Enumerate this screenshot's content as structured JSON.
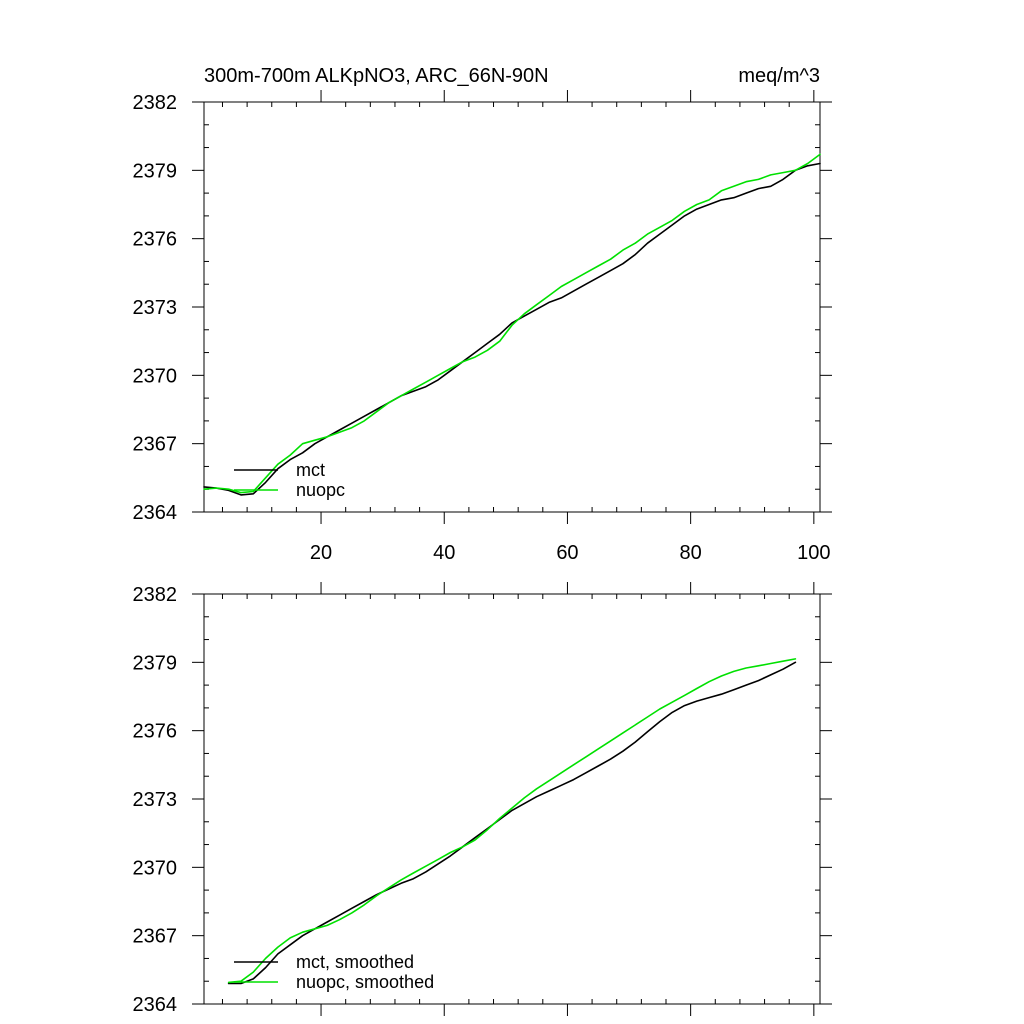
{
  "chart_data": [
    {
      "type": "line",
      "title_left": "300m-700m ALKpNO3, ARC_66N-90N",
      "title_right": "meq/m^3",
      "xlabel": "",
      "ylabel": "",
      "xlim": [
        1,
        101
      ],
      "ylim": [
        2364,
        2382
      ],
      "xticks": [
        20,
        40,
        60,
        80,
        100
      ],
      "xtick_labels": [
        "20",
        "40",
        "60",
        "80",
        "100"
      ],
      "yticks": [
        2364,
        2367,
        2370,
        2373,
        2376,
        2379,
        2382
      ],
      "ytick_labels": [
        "2364",
        "2367",
        "2370",
        "2373",
        "2376",
        "2379",
        "2382"
      ],
      "legend": {
        "position": "bottom-left",
        "entries": [
          "mct",
          "nuopc"
        ]
      },
      "series": [
        {
          "name": "mct",
          "color": "#000000",
          "points": [
            [
              1,
              2365.1
            ],
            [
              3,
              2365.05
            ],
            [
              5,
              2364.95
            ],
            [
              7,
              2364.75
            ],
            [
              9,
              2364.8
            ],
            [
              11,
              2365.3
            ],
            [
              13,
              2365.9
            ],
            [
              15,
              2366.3
            ],
            [
              17,
              2366.6
            ],
            [
              19,
              2367.0
            ],
            [
              21,
              2367.3
            ],
            [
              23,
              2367.6
            ],
            [
              25,
              2367.9
            ],
            [
              27,
              2368.2
            ],
            [
              29,
              2368.5
            ],
            [
              31,
              2368.8
            ],
            [
              33,
              2369.1
            ],
            [
              35,
              2369.3
            ],
            [
              37,
              2369.5
            ],
            [
              39,
              2369.8
            ],
            [
              41,
              2370.2
            ],
            [
              43,
              2370.6
            ],
            [
              45,
              2371.0
            ],
            [
              47,
              2371.4
            ],
            [
              49,
              2371.8
            ],
            [
              51,
              2372.3
            ],
            [
              53,
              2372.6
            ],
            [
              55,
              2372.9
            ],
            [
              57,
              2373.2
            ],
            [
              59,
              2373.4
            ],
            [
              61,
              2373.7
            ],
            [
              63,
              2374.0
            ],
            [
              65,
              2374.3
            ],
            [
              67,
              2374.6
            ],
            [
              69,
              2374.9
            ],
            [
              71,
              2375.3
            ],
            [
              73,
              2375.8
            ],
            [
              75,
              2376.2
            ],
            [
              77,
              2376.6
            ],
            [
              79,
              2377.0
            ],
            [
              81,
              2377.3
            ],
            [
              83,
              2377.5
            ],
            [
              85,
              2377.7
            ],
            [
              87,
              2377.8
            ],
            [
              89,
              2378.0
            ],
            [
              91,
              2378.2
            ],
            [
              93,
              2378.3
            ],
            [
              95,
              2378.6
            ],
            [
              97,
              2379.0
            ],
            [
              99,
              2379.2
            ],
            [
              101,
              2379.3
            ]
          ]
        },
        {
          "name": "nuopc",
          "color": "#00e000",
          "points": [
            [
              1,
              2365.0
            ],
            [
              3,
              2365.05
            ],
            [
              5,
              2365.0
            ],
            [
              7,
              2364.85
            ],
            [
              9,
              2364.9
            ],
            [
              11,
              2365.5
            ],
            [
              13,
              2366.1
            ],
            [
              15,
              2366.5
            ],
            [
              17,
              2367.0
            ],
            [
              19,
              2367.15
            ],
            [
              21,
              2367.3
            ],
            [
              23,
              2367.5
            ],
            [
              25,
              2367.7
            ],
            [
              27,
              2368.0
            ],
            [
              29,
              2368.4
            ],
            [
              31,
              2368.8
            ],
            [
              33,
              2369.1
            ],
            [
              35,
              2369.4
            ],
            [
              37,
              2369.7
            ],
            [
              39,
              2370.0
            ],
            [
              41,
              2370.3
            ],
            [
              43,
              2370.6
            ],
            [
              45,
              2370.8
            ],
            [
              47,
              2371.1
            ],
            [
              49,
              2371.5
            ],
            [
              51,
              2372.2
            ],
            [
              53,
              2372.7
            ],
            [
              55,
              2373.1
            ],
            [
              57,
              2373.5
            ],
            [
              59,
              2373.9
            ],
            [
              61,
              2374.2
            ],
            [
              63,
              2374.5
            ],
            [
              65,
              2374.8
            ],
            [
              67,
              2375.1
            ],
            [
              69,
              2375.5
            ],
            [
              71,
              2375.8
            ],
            [
              73,
              2376.2
            ],
            [
              75,
              2376.5
            ],
            [
              77,
              2376.8
            ],
            [
              79,
              2377.2
            ],
            [
              81,
              2377.5
            ],
            [
              83,
              2377.7
            ],
            [
              85,
              2378.1
            ],
            [
              87,
              2378.3
            ],
            [
              89,
              2378.5
            ],
            [
              91,
              2378.6
            ],
            [
              93,
              2378.8
            ],
            [
              95,
              2378.9
            ],
            [
              97,
              2379.0
            ],
            [
              99,
              2379.3
            ],
            [
              101,
              2379.7
            ]
          ]
        }
      ]
    },
    {
      "type": "line",
      "xlim": [
        1,
        101
      ],
      "ylim": [
        2364,
        2382
      ],
      "xticks": [
        20,
        40,
        60,
        80,
        100
      ],
      "yticks": [
        2364,
        2367,
        2370,
        2373,
        2376,
        2379,
        2382
      ],
      "ytick_labels": [
        "2364",
        "2367",
        "2370",
        "2373",
        "2376",
        "2379",
        "2382"
      ],
      "legend": {
        "position": "bottom-left",
        "entries": [
          "mct, smoothed",
          "nuopc, smoothed"
        ]
      },
      "series": [
        {
          "name": "mct, smoothed",
          "color": "#000000",
          "points": [
            [
              5,
              2364.9
            ],
            [
              7,
              2364.9
            ],
            [
              9,
              2365.1
            ],
            [
              11,
              2365.6
            ],
            [
              13,
              2366.2
            ],
            [
              15,
              2366.6
            ],
            [
              17,
              2367.0
            ],
            [
              19,
              2367.3
            ],
            [
              21,
              2367.6
            ],
            [
              23,
              2367.9
            ],
            [
              25,
              2368.2
            ],
            [
              27,
              2368.5
            ],
            [
              29,
              2368.8
            ],
            [
              31,
              2369.05
            ],
            [
              33,
              2369.3
            ],
            [
              35,
              2369.5
            ],
            [
              37,
              2369.8
            ],
            [
              39,
              2370.15
            ],
            [
              41,
              2370.5
            ],
            [
              43,
              2370.9
            ],
            [
              45,
              2371.3
            ],
            [
              47,
              2371.7
            ],
            [
              49,
              2372.1
            ],
            [
              51,
              2372.5
            ],
            [
              53,
              2372.8
            ],
            [
              55,
              2373.1
            ],
            [
              57,
              2373.35
            ],
            [
              59,
              2373.6
            ],
            [
              61,
              2373.85
            ],
            [
              63,
              2374.15
            ],
            [
              65,
              2374.45
            ],
            [
              67,
              2374.75
            ],
            [
              69,
              2375.1
            ],
            [
              71,
              2375.5
            ],
            [
              73,
              2375.95
            ],
            [
              75,
              2376.4
            ],
            [
              77,
              2376.8
            ],
            [
              79,
              2377.1
            ],
            [
              81,
              2377.3
            ],
            [
              83,
              2377.45
            ],
            [
              85,
              2377.6
            ],
            [
              87,
              2377.8
            ],
            [
              89,
              2378.0
            ],
            [
              91,
              2378.2
            ],
            [
              93,
              2378.45
            ],
            [
              95,
              2378.7
            ],
            [
              97,
              2379.0
            ]
          ]
        },
        {
          "name": "nuopc, smoothed",
          "color": "#00e000",
          "points": [
            [
              5,
              2364.95
            ],
            [
              7,
              2365.0
            ],
            [
              9,
              2365.4
            ],
            [
              11,
              2366.0
            ],
            [
              13,
              2366.5
            ],
            [
              15,
              2366.9
            ],
            [
              17,
              2367.15
            ],
            [
              19,
              2367.3
            ],
            [
              21,
              2367.45
            ],
            [
              23,
              2367.7
            ],
            [
              25,
              2368.0
            ],
            [
              27,
              2368.35
            ],
            [
              29,
              2368.75
            ],
            [
              31,
              2369.1
            ],
            [
              33,
              2369.45
            ],
            [
              35,
              2369.75
            ],
            [
              37,
              2370.05
            ],
            [
              39,
              2370.35
            ],
            [
              41,
              2370.65
            ],
            [
              43,
              2370.9
            ],
            [
              45,
              2371.2
            ],
            [
              47,
              2371.65
            ],
            [
              49,
              2372.15
            ],
            [
              51,
              2372.6
            ],
            [
              53,
              2373.05
            ],
            [
              55,
              2373.45
            ],
            [
              57,
              2373.8
            ],
            [
              59,
              2374.15
            ],
            [
              61,
              2374.5
            ],
            [
              63,
              2374.85
            ],
            [
              65,
              2375.2
            ],
            [
              67,
              2375.55
            ],
            [
              69,
              2375.9
            ],
            [
              71,
              2376.25
            ],
            [
              73,
              2376.6
            ],
            [
              75,
              2376.95
            ],
            [
              77,
              2377.25
            ],
            [
              79,
              2377.55
            ],
            [
              81,
              2377.85
            ],
            [
              83,
              2378.15
            ],
            [
              85,
              2378.4
            ],
            [
              87,
              2378.6
            ],
            [
              89,
              2378.75
            ],
            [
              91,
              2378.85
            ],
            [
              93,
              2378.95
            ],
            [
              95,
              2379.05
            ],
            [
              97,
              2379.15
            ]
          ]
        }
      ]
    }
  ]
}
